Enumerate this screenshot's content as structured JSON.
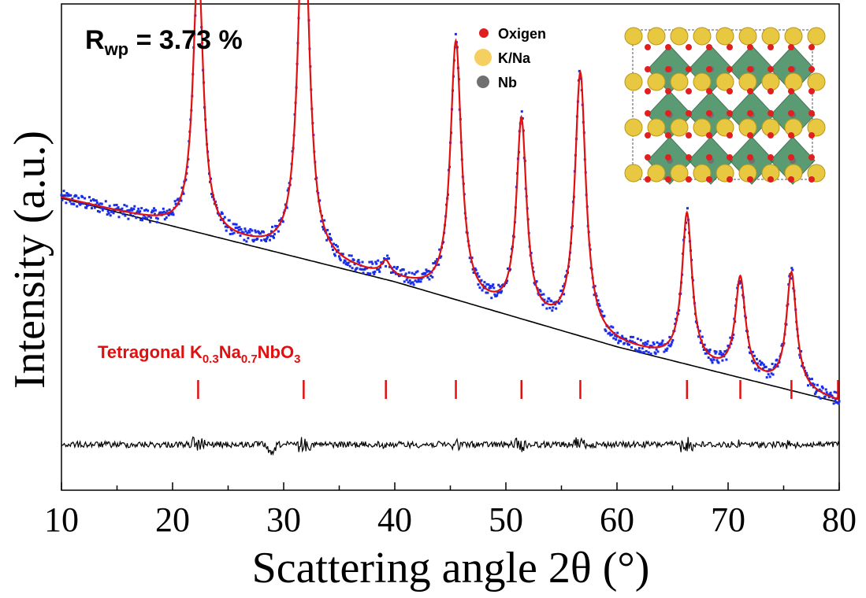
{
  "chart_data": {
    "type": "scatter",
    "xlabel": "Scattering angle 2θ (°)",
    "ylabel": "Intensity (a.u.)",
    "xlim": [
      10,
      80
    ],
    "xticks": [
      "10",
      "20",
      "30",
      "40",
      "50",
      "60",
      "70",
      "80"
    ],
    "yticks_labeled": false,
    "annotation": {
      "prefix": "R",
      "subscript": "wp",
      "text": " = 3.73 %"
    },
    "phase_label": {
      "parts": [
        {
          "t": "Tetragonal K"
        },
        {
          "t": "0.3",
          "sub": true
        },
        {
          "t": "Na"
        },
        {
          "t": "0.7",
          "sub": true
        },
        {
          "t": "NbO"
        },
        {
          "t": "3",
          "sub": true
        }
      ]
    },
    "legend": {
      "items": [
        {
          "label": "Oxigen",
          "color": "#e02020"
        },
        {
          "label": "K/Na",
          "color": "#f5d060"
        },
        {
          "label": "Nb",
          "color": "#707070"
        }
      ]
    },
    "colors": {
      "observed": "#1a2ee8",
      "calculated": "#e01010",
      "background": "#000000",
      "difference": "#000000",
      "reflections": "#e01010"
    },
    "background_curve": [
      [
        10,
        0.59
      ],
      [
        20,
        0.53
      ],
      [
        30,
        0.47
      ],
      [
        40,
        0.41
      ],
      [
        50,
        0.34
      ],
      [
        60,
        0.27
      ],
      [
        70,
        0.21
      ],
      [
        80,
        0.15
      ]
    ],
    "peaks": [
      {
        "x": 22.3,
        "height": 0.58,
        "width": 0.55
      },
      {
        "x": 31.8,
        "height": 0.8,
        "width": 0.6
      },
      {
        "x": 39.2,
        "height": 0.03,
        "width": 0.5
      },
      {
        "x": 45.5,
        "height": 0.55,
        "width": 0.6
      },
      {
        "x": 51.4,
        "height": 0.42,
        "width": 0.55
      },
      {
        "x": 56.7,
        "height": 0.56,
        "width": 0.6
      },
      {
        "x": 66.3,
        "height": 0.32,
        "width": 0.55
      },
      {
        "x": 71.1,
        "height": 0.21,
        "width": 0.55
      },
      {
        "x": 75.7,
        "height": 0.25,
        "width": 0.55
      }
    ],
    "reflection_positions": [
      22.3,
      31.8,
      39.2,
      45.5,
      51.4,
      56.7,
      66.3,
      71.1,
      75.7,
      80.0
    ],
    "series": [
      {
        "name": "observed",
        "style": "points"
      },
      {
        "name": "calculated",
        "style": "line"
      },
      {
        "name": "background",
        "style": "line"
      },
      {
        "name": "difference",
        "style": "line"
      }
    ]
  }
}
